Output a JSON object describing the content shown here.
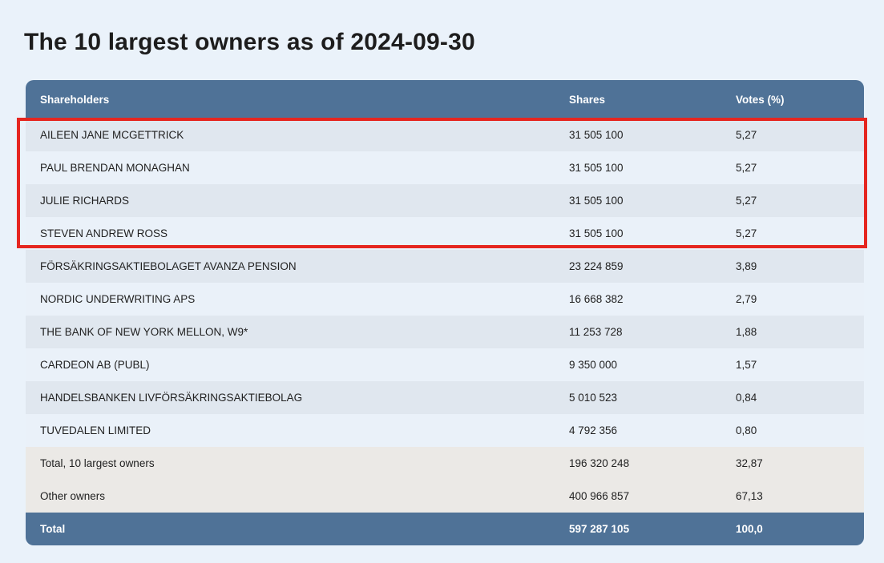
{
  "page": {
    "title": "The 10 largest owners as of 2024-09-30"
  },
  "colors": {
    "page_bg": "#eaf2fa",
    "title_color": "#1d1d1d",
    "header_bg": "#4f7297",
    "row_odd": "#e0e7ef",
    "row_even": "#eaf1f9",
    "summary_bg": "#ebe9e6",
    "text_dark": "#212121",
    "highlight": "#e52620"
  },
  "table": {
    "columns": [
      "Shareholders",
      "Shares",
      "Votes (%)"
    ],
    "rows": [
      {
        "shareholder": "AILEEN JANE MCGETTRICK",
        "shares": "31 505 100",
        "votes": "5,27",
        "highlighted": true
      },
      {
        "shareholder": "PAUL BRENDAN MONAGHAN",
        "shares": "31 505 100",
        "votes": "5,27",
        "highlighted": true
      },
      {
        "shareholder": "JULIE RICHARDS",
        "shares": "31 505 100",
        "votes": "5,27",
        "highlighted": true
      },
      {
        "shareholder": "STEVEN ANDREW ROSS",
        "shares": "31 505 100",
        "votes": "5,27",
        "highlighted": true
      },
      {
        "shareholder": "FÖRSÄKRINGSAKTIEBOLAGET AVANZA PENSION",
        "shares": "23 224 859",
        "votes": "3,89",
        "highlighted": false
      },
      {
        "shareholder": "NORDIC UNDERWRITING APS",
        "shares": "16 668 382",
        "votes": "2,79",
        "highlighted": false
      },
      {
        "shareholder": "THE BANK OF NEW YORK MELLON, W9*",
        "shares": "11 253 728",
        "votes": "1,88",
        "highlighted": false
      },
      {
        "shareholder": "CARDEON AB (PUBL)",
        "shares": "9 350 000",
        "votes": "1,57",
        "highlighted": false
      },
      {
        "shareholder": "HANDELSBANKEN LIVFÖRSÄKRINGSAKTIEBOLAG",
        "shares": "5 010 523",
        "votes": "0,84",
        "highlighted": false
      },
      {
        "shareholder": "TUVEDALEN LIMITED",
        "shares": "4 792 356",
        "votes": "0,80",
        "highlighted": false
      }
    ],
    "summary_rows": [
      {
        "shareholder": "Total, 10 largest owners",
        "shares": "196 320 248",
        "votes": "32,87"
      },
      {
        "shareholder": "Other owners",
        "shares": "400 966 857",
        "votes": "67,13"
      }
    ],
    "total_row": {
      "shareholder": "Total",
      "shares": "597 287 105",
      "votes": "100,0"
    }
  },
  "annotation": {
    "type": "highlight-box",
    "color": "#e52620",
    "rows_covered": [
      1,
      2,
      3,
      4
    ]
  }
}
